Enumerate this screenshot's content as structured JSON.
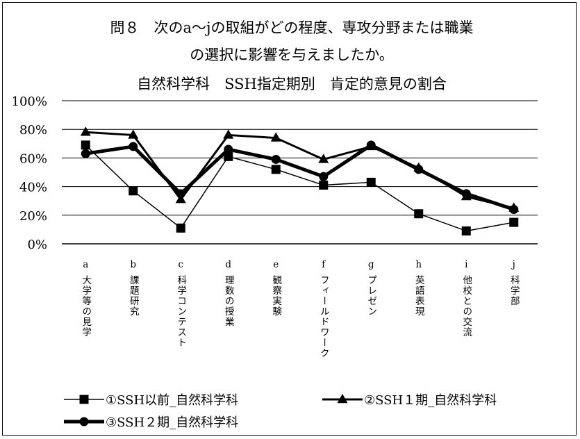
{
  "chart_data": {
    "type": "line",
    "title_lines": [
      "問８　次のa～jの取組がどの程度、専攻分野または職業",
      "の選択に影響を与えましたか。",
      "自然科学科　SSH指定期別　肯定的意見の割合"
    ],
    "xlabel": "",
    "ylabel": "",
    "ylim": [
      0,
      100
    ],
    "yticks": [
      "0%",
      "20%",
      "40%",
      "60%",
      "80%",
      "100%"
    ],
    "grid": "horizontal",
    "legend_position": "bottom",
    "categories": [
      {
        "letter": "a",
        "label": "大学等の見学"
      },
      {
        "letter": "b",
        "label": "課題研究"
      },
      {
        "letter": "c",
        "label": "科学コンテスト"
      },
      {
        "letter": "d",
        "label": "理数の授業"
      },
      {
        "letter": "e",
        "label": "観察実験"
      },
      {
        "letter": "f",
        "label": "フィールドワーク"
      },
      {
        "letter": "g",
        "label": "プレゼン"
      },
      {
        "letter": "h",
        "label": "英語表現"
      },
      {
        "letter": "i",
        "label": "他校との交流"
      },
      {
        "letter": "j",
        "label": "科学部"
      }
    ],
    "series": [
      {
        "name": "①SSH以前_自然科学科",
        "marker": "square",
        "stroke_width": 1.5,
        "values": [
          69,
          37,
          11,
          61,
          52,
          41,
          43,
          21,
          9,
          15
        ]
      },
      {
        "name": "②SSH１期_自然科学科",
        "marker": "triangle",
        "stroke_width": 3,
        "values": [
          78,
          76,
          31,
          76,
          74,
          59,
          68,
          53,
          33,
          25
        ]
      },
      {
        "name": "③SSH２期_自然科学科",
        "marker": "circle",
        "stroke_width": 5,
        "values": [
          63,
          68,
          35,
          66,
          59,
          47,
          69,
          52,
          35,
          24
        ]
      }
    ]
  }
}
